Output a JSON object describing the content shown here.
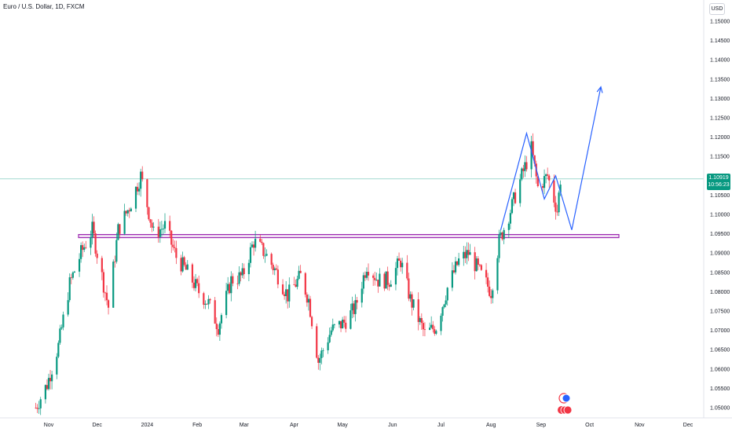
{
  "header": {
    "title": "Euro / U.S. Dollar, 1D, FXCM"
  },
  "currency_button": "USD",
  "last_price": {
    "value": "1.10919",
    "countdown": "10:56:23"
  },
  "colors": {
    "up": "#089981",
    "down": "#f23645",
    "support": "#9c27b0",
    "projection": "#2962ff",
    "last_line": "#089981"
  },
  "icons": [
    "event-marker-icon",
    "flag-event-icon"
  ],
  "chart_data": {
    "type": "candlestick",
    "symbol": "EURUSD",
    "interval": "1D",
    "y_ticks": [
      "1.15000",
      "1.14500",
      "1.14000",
      "1.13500",
      "1.13000",
      "1.12500",
      "1.12000",
      "1.11500",
      "1.11000",
      "1.10500",
      "1.10000",
      "1.09500",
      "1.09000",
      "1.08500",
      "1.08000",
      "1.07500",
      "1.07000",
      "1.06500",
      "1.06000",
      "1.05500",
      "1.05000"
    ],
    "ylim": [
      1.047,
      1.154
    ],
    "x_ticks": [
      {
        "label": "Nov",
        "date": "2023-11-01"
      },
      {
        "label": "Dec",
        "date": "2023-12-01"
      },
      {
        "label": "2024",
        "date": "2024-01-01"
      },
      {
        "label": "Feb",
        "date": "2024-02-01"
      },
      {
        "label": "Mar",
        "date": "2024-03-01"
      },
      {
        "label": "Apr",
        "date": "2024-04-01"
      },
      {
        "label": "May",
        "date": "2024-05-01"
      },
      {
        "label": "Jun",
        "date": "2024-06-01"
      },
      {
        "label": "Jul",
        "date": "2024-07-01"
      },
      {
        "label": "Aug",
        "date": "2024-08-01"
      },
      {
        "label": "Sep",
        "date": "2024-09-01"
      },
      {
        "label": "Oct",
        "date": "2024-10-01"
      },
      {
        "label": "Nov",
        "date": "2024-11-01"
      },
      {
        "label": "Dec",
        "date": "2024-12-01"
      }
    ],
    "close_path": [
      [
        "2023-10-24",
        1.05
      ],
      [
        "2023-10-31",
        1.056
      ],
      [
        "2023-11-07",
        1.066
      ],
      [
        "2023-11-14",
        1.082
      ],
      [
        "2023-11-21",
        1.09
      ],
      [
        "2023-11-28",
        1.096
      ],
      [
        "2023-12-05",
        1.082
      ],
      [
        "2023-12-08",
        1.076
      ],
      [
        "2023-12-14",
        1.096
      ],
      [
        "2023-12-21",
        1.102
      ],
      [
        "2023-12-28",
        1.11
      ],
      [
        "2024-01-05",
        1.095
      ],
      [
        "2024-01-12",
        1.097
      ],
      [
        "2024-01-19",
        1.089
      ],
      [
        "2024-01-26",
        1.085
      ],
      [
        "2024-02-02",
        1.08
      ],
      [
        "2024-02-08",
        1.077
      ],
      [
        "2024-02-14",
        1.071
      ],
      [
        "2024-02-22",
        1.083
      ],
      [
        "2024-02-29",
        1.084
      ],
      [
        "2024-03-07",
        1.093
      ],
      [
        "2024-03-14",
        1.09
      ],
      [
        "2024-03-21",
        1.085
      ],
      [
        "2024-03-28",
        1.079
      ],
      [
        "2024-04-05",
        1.084
      ],
      [
        "2024-04-10",
        1.078
      ],
      [
        "2024-04-16",
        1.062
      ],
      [
        "2024-04-24",
        1.07
      ],
      [
        "2024-05-02",
        1.072
      ],
      [
        "2024-05-09",
        1.076
      ],
      [
        "2024-05-16",
        1.087
      ],
      [
        "2024-05-23",
        1.083
      ],
      [
        "2024-05-30",
        1.083
      ],
      [
        "2024-06-06",
        1.088
      ],
      [
        "2024-06-12",
        1.078
      ],
      [
        "2024-06-21",
        1.069
      ],
      [
        "2024-06-28",
        1.071
      ],
      [
        "2024-07-05",
        1.081
      ],
      [
        "2024-07-12",
        1.088
      ],
      [
        "2024-07-18",
        1.09
      ],
      [
        "2024-07-25",
        1.085
      ],
      [
        "2024-08-01",
        1.08
      ],
      [
        "2024-08-06",
        1.093
      ],
      [
        "2024-08-13",
        1.101
      ],
      [
        "2024-08-20",
        1.11
      ],
      [
        "2024-08-26",
        1.117
      ],
      [
        "2024-08-30",
        1.107
      ],
      [
        "2024-09-05",
        1.11
      ],
      [
        "2024-09-11",
        1.101
      ],
      [
        "2024-09-13",
        1.1092
      ]
    ],
    "support_zone": [
      1.094,
      1.0948
    ],
    "projection_paths": [
      [
        [
          "2024-08-07",
          1.096
        ],
        [
          "2024-08-23",
          1.121
        ],
        [
          "2024-09-03",
          1.104
        ],
        [
          "2024-09-10",
          1.11
        ],
        [
          "2024-09-20",
          1.096
        ],
        [
          "2024-10-08",
          1.133
        ]
      ]
    ]
  }
}
